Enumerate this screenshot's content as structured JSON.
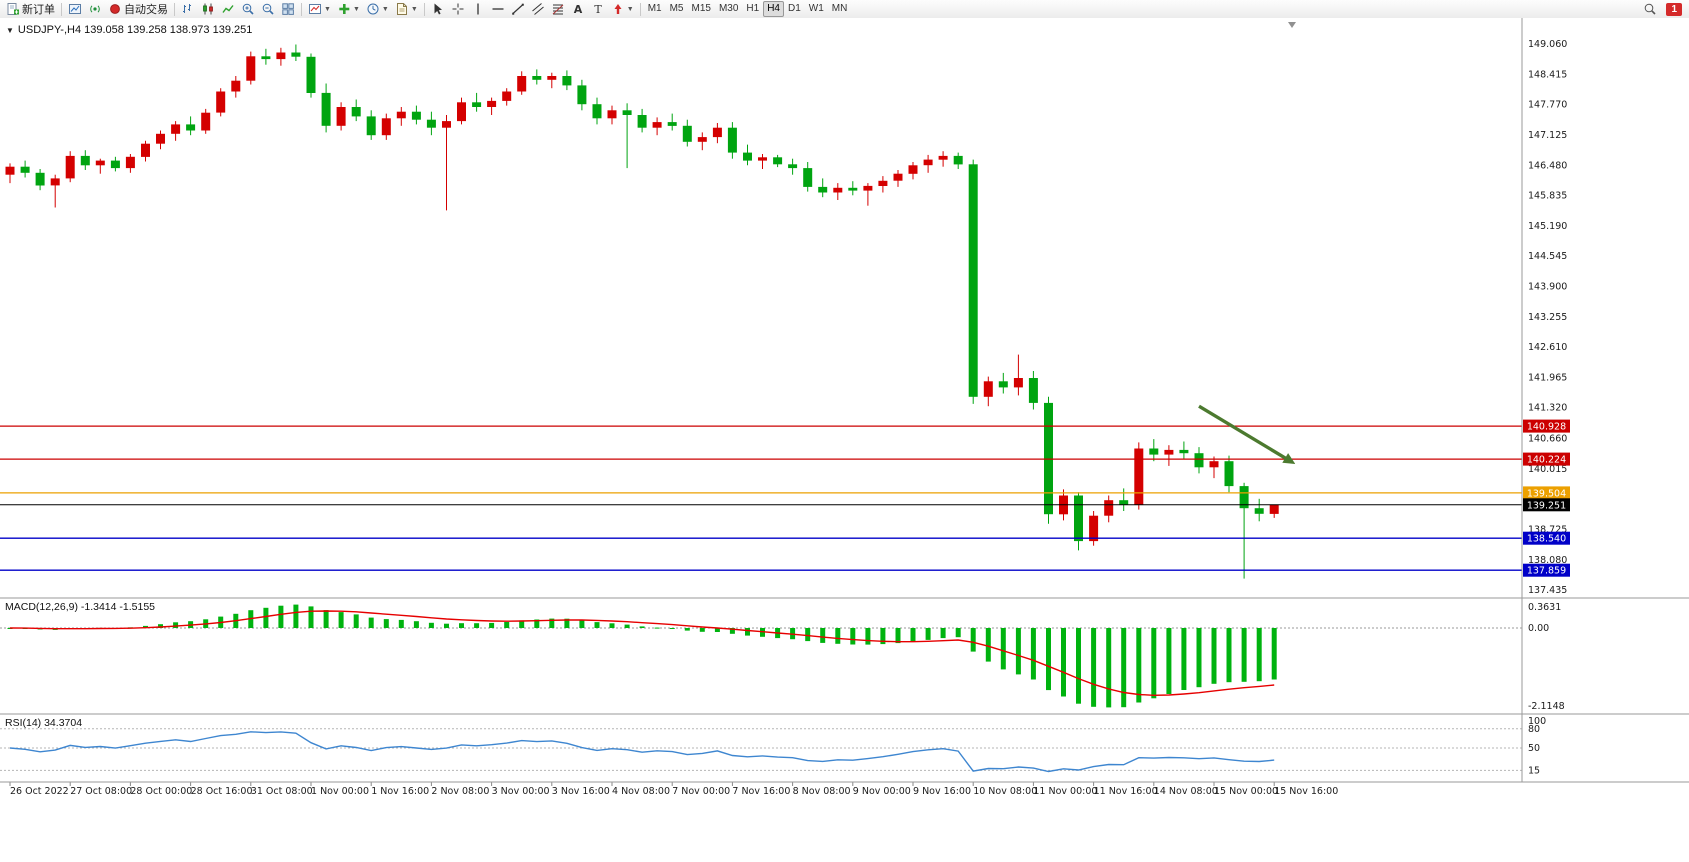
{
  "toolbar": {
    "new_order": "新订单",
    "auto_trading": "自动交易",
    "timeframes": [
      "M1",
      "M5",
      "M15",
      "M30",
      "H1",
      "H4",
      "D1",
      "W1",
      "MN"
    ],
    "active_timeframe": "H4",
    "notification_count": "1"
  },
  "chart": {
    "title": "USDJPY-,H4 139.058 139.258 138.973 139.251"
  },
  "chart_data": {
    "type": "candlestick",
    "symbol": "USDJPY-",
    "timeframe": "H4",
    "ohlc": {
      "open": 139.058,
      "high": 139.258,
      "low": 138.973,
      "close": 139.251
    },
    "colors": {
      "up": "#d40000",
      "down": "#00a410",
      "macd_hist": "#00b30f",
      "macd_signal": "#e60000",
      "rsi_line": "#3e86d0",
      "hline_red": "#cc0000",
      "hline_orange": "#eca000",
      "hline_blue": "#0000c8",
      "current": "#000000",
      "arrow": "#4c7a2f"
    },
    "main_ylim": [
      137.31,
      149.53
    ],
    "price_axis_labels": [
      "149.060",
      "148.415",
      "147.770",
      "147.125",
      "146.480",
      "145.835",
      "145.190",
      "144.545",
      "143.900",
      "143.255",
      "142.610",
      "141.965",
      "141.320",
      "140.660",
      "140.015",
      "138.725",
      "138.080",
      "137.435"
    ],
    "time_labels": [
      "26 Oct 2022",
      "27 Oct 08:00",
      "28 Oct 00:00",
      "28 Oct 16:00",
      "31 Oct 08:00",
      "1 Nov 00:00",
      "1 Nov 16:00",
      "2 Nov 08:00",
      "3 Nov 00:00",
      "3 Nov 16:00",
      "4 Nov 08:00",
      "7 Nov 00:00",
      "7 Nov 16:00",
      "8 Nov 08:00",
      "9 Nov 00:00",
      "9 Nov 16:00",
      "10 Nov 08:00",
      "11 Nov 00:00",
      "11 Nov 16:00",
      "14 Nov 08:00",
      "15 Nov 00:00",
      "15 Nov 16:00"
    ],
    "time_label_step": 4,
    "candles": [
      [
        146.28,
        146.52,
        146.1,
        146.45
      ],
      [
        146.45,
        146.58,
        146.22,
        146.32
      ],
      [
        146.32,
        146.4,
        145.95,
        146.05
      ],
      [
        146.05,
        146.28,
        145.58,
        146.2
      ],
      [
        146.2,
        146.78,
        146.12,
        146.68
      ],
      [
        146.68,
        146.8,
        146.38,
        146.48
      ],
      [
        146.48,
        146.62,
        146.3,
        146.58
      ],
      [
        146.58,
        146.66,
        146.35,
        146.42
      ],
      [
        146.42,
        146.72,
        146.32,
        146.66
      ],
      [
        146.66,
        147.0,
        146.56,
        146.94
      ],
      [
        146.94,
        147.22,
        146.82,
        147.15
      ],
      [
        147.15,
        147.42,
        147.0,
        147.35
      ],
      [
        147.35,
        147.52,
        147.12,
        147.22
      ],
      [
        147.22,
        147.68,
        147.15,
        147.6
      ],
      [
        147.6,
        148.12,
        147.52,
        148.05
      ],
      [
        148.05,
        148.38,
        147.92,
        148.28
      ],
      [
        148.28,
        148.9,
        148.2,
        148.8
      ],
      [
        148.8,
        148.96,
        148.62,
        148.74
      ],
      [
        148.74,
        148.98,
        148.6,
        148.88
      ],
      [
        148.88,
        149.05,
        148.7,
        148.79
      ],
      [
        148.79,
        148.86,
        147.92,
        148.02
      ],
      [
        148.02,
        148.22,
        147.18,
        147.32
      ],
      [
        147.32,
        147.82,
        147.22,
        147.72
      ],
      [
        147.72,
        147.88,
        147.42,
        147.52
      ],
      [
        147.52,
        147.65,
        147.02,
        147.12
      ],
      [
        147.12,
        147.58,
        147.02,
        147.48
      ],
      [
        147.48,
        147.72,
        147.32,
        147.62
      ],
      [
        147.62,
        147.75,
        147.35,
        147.45
      ],
      [
        147.45,
        147.62,
        147.12,
        147.28
      ],
      [
        147.28,
        147.55,
        145.52,
        147.42
      ],
      [
        147.42,
        147.92,
        147.35,
        147.82
      ],
      [
        147.82,
        148.02,
        147.62,
        147.72
      ],
      [
        147.72,
        147.92,
        147.55,
        147.85
      ],
      [
        147.85,
        148.12,
        147.75,
        148.05
      ],
      [
        148.05,
        148.48,
        147.98,
        148.38
      ],
      [
        148.38,
        148.52,
        148.2,
        148.3
      ],
      [
        148.3,
        148.45,
        148.12,
        148.38
      ],
      [
        148.38,
        148.5,
        148.08,
        148.18
      ],
      [
        148.18,
        148.3,
        147.65,
        147.78
      ],
      [
        147.78,
        147.92,
        147.35,
        147.48
      ],
      [
        147.48,
        147.75,
        147.35,
        147.65
      ],
      [
        147.65,
        147.8,
        146.42,
        147.55
      ],
      [
        147.55,
        147.68,
        147.18,
        147.28
      ],
      [
        147.28,
        147.5,
        147.12,
        147.4
      ],
      [
        147.4,
        147.58,
        147.22,
        147.32
      ],
      [
        147.32,
        147.45,
        146.88,
        146.98
      ],
      [
        146.98,
        147.18,
        146.8,
        147.08
      ],
      [
        147.08,
        147.38,
        146.95,
        147.28
      ],
      [
        147.28,
        147.4,
        146.62,
        146.75
      ],
      [
        146.75,
        146.92,
        146.48,
        146.58
      ],
      [
        146.58,
        146.72,
        146.4,
        146.65
      ],
      [
        146.65,
        146.7,
        146.44,
        146.5
      ],
      [
        146.5,
        146.62,
        146.28,
        146.42
      ],
      [
        146.42,
        146.55,
        145.92,
        146.02
      ],
      [
        146.02,
        146.2,
        145.8,
        145.9
      ],
      [
        145.9,
        146.1,
        145.74,
        146.0
      ],
      [
        146.0,
        146.14,
        145.84,
        145.94
      ],
      [
        145.94,
        146.1,
        145.62,
        146.04
      ],
      [
        146.04,
        146.25,
        145.9,
        146.15
      ],
      [
        146.15,
        146.38,
        146.02,
        146.3
      ],
      [
        146.3,
        146.55,
        146.18,
        146.48
      ],
      [
        146.48,
        146.7,
        146.32,
        146.6
      ],
      [
        146.6,
        146.78,
        146.45,
        146.68
      ],
      [
        146.68,
        146.75,
        146.4,
        146.5
      ],
      [
        146.5,
        146.6,
        141.4,
        141.55
      ],
      [
        141.55,
        141.98,
        141.35,
        141.88
      ],
      [
        141.88,
        142.06,
        141.62,
        141.75
      ],
      [
        141.75,
        142.45,
        141.58,
        141.95
      ],
      [
        141.95,
        142.1,
        141.28,
        141.42
      ],
      [
        141.42,
        141.55,
        138.85,
        139.05
      ],
      [
        139.05,
        139.58,
        138.92,
        139.45
      ],
      [
        139.45,
        139.52,
        138.28,
        138.48
      ],
      [
        138.48,
        139.12,
        138.38,
        139.02
      ],
      [
        139.02,
        139.45,
        138.88,
        139.35
      ],
      [
        139.35,
        139.6,
        139.12,
        139.25
      ],
      [
        139.25,
        140.58,
        139.15,
        140.45
      ],
      [
        140.45,
        140.65,
        140.18,
        140.32
      ],
      [
        140.32,
        140.52,
        140.08,
        140.42
      ],
      [
        140.42,
        140.6,
        140.22,
        140.35
      ],
      [
        140.35,
        140.48,
        139.92,
        140.05
      ],
      [
        140.05,
        140.28,
        139.82,
        140.18
      ],
      [
        140.18,
        140.3,
        139.52,
        139.65
      ],
      [
        139.65,
        139.72,
        137.68,
        139.18
      ],
      [
        139.18,
        139.38,
        138.9,
        139.06
      ],
      [
        139.058,
        139.258,
        138.973,
        139.251
      ]
    ],
    "hlines": [
      {
        "price": 140.928,
        "label": "140.928",
        "color": "#cc0000"
      },
      {
        "price": 140.224,
        "label": "140.224",
        "color": "#cc0000"
      },
      {
        "price": 139.504,
        "label": "139.504",
        "color": "#eca000"
      },
      {
        "price": 138.54,
        "label": "138.540",
        "color": "#0000c8"
      },
      {
        "price": 137.859,
        "label": "137.859",
        "color": "#0000c8"
      }
    ],
    "current_price": {
      "price": 139.251,
      "label": "139.251",
      "color": "#000000"
    },
    "arrow": {
      "from_index": 79,
      "from_price": 141.35,
      "to_index": 85.4,
      "to_price": 140.12,
      "color": "#4c7a2f"
    },
    "macd": {
      "label": "MACD(12,26,9) -1.3414 -1.5155",
      "fast": 12,
      "slow": 26,
      "signal": 9,
      "main_value": -1.3414,
      "signal_value": -1.5155,
      "axis_labels": [
        "0.3631",
        "0.00",
        "-2.1148"
      ]
    },
    "rsi": {
      "label": "RSI(14) 34.3704",
      "period": 14,
      "value": 34.3704,
      "levels": [
        80,
        50,
        15
      ],
      "axis_labels": [
        "100",
        "80",
        "50",
        "15"
      ]
    }
  }
}
